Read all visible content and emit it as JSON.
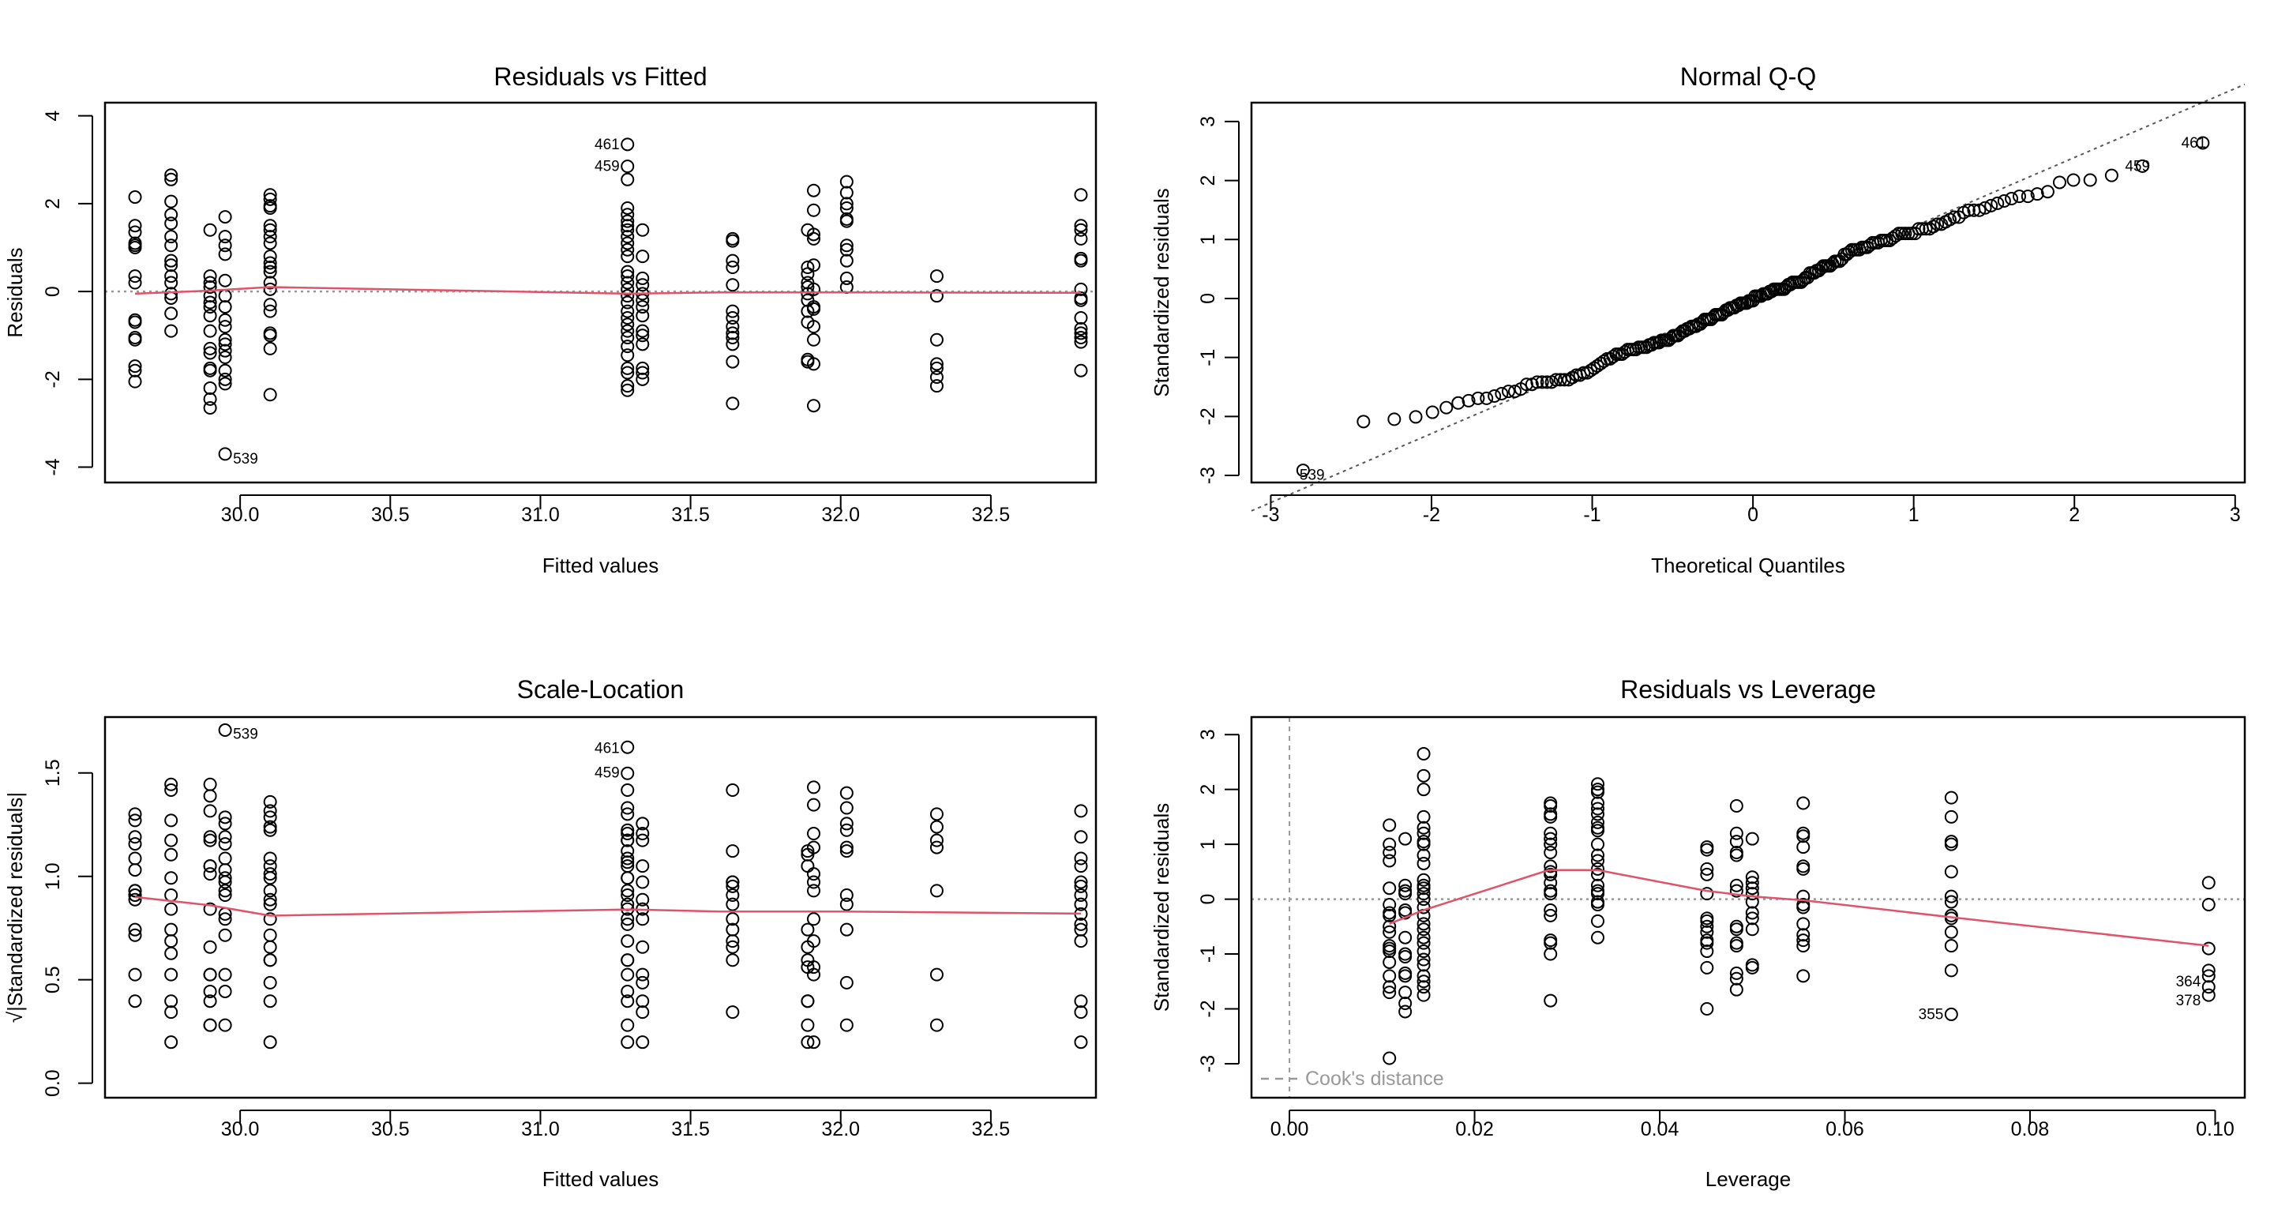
{
  "colors": {
    "points": "#000000",
    "smooth": "#DF536B",
    "reference": "#999999",
    "qqline": "#555555"
  },
  "chart_data": [
    {
      "type": "scatter",
      "title": "Residuals vs Fitted",
      "xlabel": "Fitted values",
      "ylabel": "Residuals",
      "xlim": [
        29.55,
        32.85
      ],
      "ylim": [
        -4.35,
        4.3
      ],
      "xticks": [
        30.0,
        30.5,
        31.0,
        31.5,
        32.0,
        32.5
      ],
      "xtick_labels": [
        "30.0",
        "30.5",
        "31.0",
        "31.5",
        "32.0",
        "32.5"
      ],
      "yticks": [
        -4,
        -2,
        0,
        2,
        4
      ],
      "ytick_labels": [
        "-4",
        "-2",
        "0",
        "2",
        "4"
      ],
      "hline": 0,
      "groups": [
        {
          "x": 29.65,
          "y": [
            2.15,
            1.5,
            1.35,
            1.1,
            1.05,
            1.0,
            0.35,
            0.2,
            -0.65,
            -0.7,
            -1.05,
            -1.1,
            -1.7,
            -1.8,
            -2.05
          ]
        },
        {
          "x": 29.77,
          "y": [
            2.65,
            2.55,
            2.05,
            1.75,
            1.55,
            1.25,
            1.05,
            0.7,
            0.6,
            0.35,
            0.2,
            -0.05,
            -0.15,
            -0.5,
            -0.9
          ]
        },
        {
          "x": 29.9,
          "y": [
            1.4,
            0.35,
            0.2,
            0.1,
            -0.1,
            -0.25,
            -0.35,
            -0.55,
            -0.9,
            -1.3,
            -1.4,
            -1.75,
            -1.8,
            -2.2,
            -2.45,
            -2.65
          ]
        },
        {
          "x": 29.95,
          "y": [
            1.7,
            1.25,
            1.05,
            0.85,
            0.25,
            -0.1,
            -0.35,
            -0.65,
            -0.8,
            -1.1,
            -1.2,
            -1.35,
            -1.5,
            -1.8,
            -2.0,
            -2.1,
            -3.7
          ]
        },
        {
          "x": 30.1,
          "y": [
            2.2,
            2.1,
            1.95,
            1.9,
            1.5,
            1.4,
            1.25,
            1.1,
            0.8,
            0.65,
            0.55,
            0.45,
            0.2,
            0.05,
            -0.3,
            -0.45,
            -0.95,
            -1.0,
            -1.3,
            -2.35
          ]
        },
        {
          "x": 31.29,
          "y": [
            3.35,
            2.85,
            2.55,
            1.9,
            1.75,
            1.6,
            1.5,
            1.4,
            1.25,
            1.1,
            0.95,
            0.8,
            0.45,
            0.35,
            0.2,
            0.05,
            -0.1,
            -0.25,
            -0.45,
            -0.6,
            -0.75,
            -0.9,
            -1.05,
            -1.25,
            -1.45,
            -1.75,
            -1.85,
            -2.15,
            -2.25
          ]
        },
        {
          "x": 31.34,
          "y": [
            1.4,
            0.8,
            0.3,
            0.15,
            -0.05,
            -0.2,
            -0.35,
            -0.55,
            -0.9,
            -1.0,
            -1.2,
            -1.75,
            -1.85,
            -2.0
          ]
        },
        {
          "x": 31.64,
          "y": [
            1.2,
            1.15,
            0.7,
            0.55,
            0.15,
            -0.45,
            -0.6,
            -0.8,
            -0.95,
            -1.05,
            -1.2,
            -1.6,
            -2.55
          ]
        },
        {
          "x": 31.89,
          "y": [
            1.4,
            0.55,
            0.4,
            0.2,
            0.1,
            -0.05,
            -0.2,
            -0.45,
            -0.7,
            -1.55,
            -1.6
          ]
        },
        {
          "x": 31.91,
          "y": [
            2.3,
            1.85,
            1.3,
            1.2,
            0.6,
            0.05,
            -0.35,
            -0.4,
            -0.8,
            -1.1,
            -1.65,
            -2.6
          ]
        },
        {
          "x": 32.02,
          "y": [
            2.5,
            2.25,
            2.0,
            1.9,
            1.65,
            1.6,
            1.05,
            0.95,
            0.7,
            0.3,
            0.1
          ]
        },
        {
          "x": 32.32,
          "y": [
            0.35,
            -0.1,
            -1.1,
            -1.65,
            -1.75,
            -1.95,
            -2.15
          ]
        },
        {
          "x": 32.8,
          "y": [
            2.2,
            1.5,
            1.4,
            1.2,
            0.75,
            0.7,
            0.05,
            -0.15,
            -0.2,
            -0.6,
            -0.85,
            -0.95,
            -1.05,
            -1.15,
            -1.8
          ]
        }
      ],
      "smooth": [
        [
          29.65,
          -0.05
        ],
        [
          29.9,
          0.02
        ],
        [
          30.1,
          0.1
        ],
        [
          31.3,
          -0.05
        ],
        [
          31.6,
          -0.02
        ],
        [
          32.0,
          -0.02
        ],
        [
          32.8,
          -0.03
        ]
      ],
      "point_labels": [
        {
          "text": "461",
          "x": 31.29,
          "y": 3.35,
          "side": "left"
        },
        {
          "text": "459",
          "x": 31.29,
          "y": 2.85,
          "side": "left"
        },
        {
          "text": "539",
          "x": 29.95,
          "y": -3.7,
          "side": "right"
        }
      ]
    },
    {
      "type": "scatter",
      "title": "Normal Q-Q",
      "xlabel": "Theoretical Quantiles",
      "ylabel": "Standardized residuals",
      "xlim": [
        -3.12,
        3.06
      ],
      "ylim": [
        -3.12,
        3.32
      ],
      "xticks": [
        -3,
        -2,
        -1,
        0,
        1,
        2,
        3
      ],
      "xtick_labels": [
        "-3",
        "-2",
        "-1",
        "0",
        "1",
        "2",
        "3"
      ],
      "yticks": [
        -3,
        -2,
        -1,
        0,
        1,
        2,
        3
      ],
      "ytick_labels": [
        "-3",
        "-2",
        "-1",
        "0",
        "1",
        "2",
        "3"
      ],
      "qqline": {
        "slope": 1.17,
        "intercept": 0.05
      },
      "point_labels": [
        {
          "text": "461",
          "x": 2.87,
          "y": 2.64,
          "side": "left"
        },
        {
          "text": "459",
          "x": 2.52,
          "y": 2.24,
          "side": "left"
        },
        {
          "text": "539",
          "x": -2.87,
          "y": -2.91,
          "side": "right"
        }
      ]
    },
    {
      "type": "scatter",
      "title": "Scale-Location",
      "xlabel": "Fitted values",
      "ylabel": "√|Standardized residuals|",
      "xlim": [
        29.55,
        32.85
      ],
      "ylim": [
        -0.07,
        1.77
      ],
      "xticks": [
        30.0,
        30.5,
        31.0,
        31.5,
        32.0,
        32.5
      ],
      "xtick_labels": [
        "30.0",
        "30.5",
        "31.0",
        "31.5",
        "32.0",
        "32.5"
      ],
      "yticks": [
        0,
        0.5,
        1.0,
        1.5
      ],
      "ytick_labels": [
        "0.0",
        "0.5",
        "1.0",
        "1.5"
      ],
      "smooth": [
        [
          29.65,
          0.9
        ],
        [
          29.9,
          0.86
        ],
        [
          30.1,
          0.81
        ],
        [
          31.3,
          0.84
        ],
        [
          31.6,
          0.83
        ],
        [
          32.0,
          0.83
        ],
        [
          32.8,
          0.82
        ]
      ],
      "point_labels": [
        {
          "text": "539",
          "x": 29.95,
          "y": 1.71,
          "side": "right"
        },
        {
          "text": "461",
          "x": 31.29,
          "y": 1.62,
          "side": "left"
        },
        {
          "text": "459",
          "x": 31.29,
          "y": 1.5,
          "side": "left"
        }
      ]
    },
    {
      "type": "scatter",
      "title": "Residuals vs Leverage",
      "xlabel": "Leverage",
      "ylabel": "Standardized residuals",
      "xlim": [
        -0.0041,
        0.1032
      ],
      "ylim": [
        -3.62,
        3.32
      ],
      "xticks": [
        0,
        0.02,
        0.04,
        0.06,
        0.08,
        0.1
      ],
      "xtick_labels": [
        "0.00",
        "0.02",
        "0.04",
        "0.06",
        "0.08",
        "0.10"
      ],
      "yticks": [
        -3,
        -2,
        -1,
        0,
        1,
        2,
        3
      ],
      "ytick_labels": [
        "-3",
        "-2",
        "-1",
        "0",
        "1",
        "2",
        "3"
      ],
      "hline": 0,
      "vline": 0,
      "legend": {
        "text": "Cook's distance",
        "position": "bottom-left"
      },
      "groups": [
        {
          "x": 0.0108,
          "y": [
            1.35,
            1.0,
            0.85,
            0.7,
            0.2,
            -0.1,
            -0.25,
            -0.3,
            -0.5,
            -0.6,
            -0.85,
            -0.9,
            -0.95,
            -1.15,
            -1.4,
            -1.6,
            -1.7,
            -2.9
          ]
        },
        {
          "x": 0.0125,
          "y": [
            1.1,
            0.25,
            0.15,
            0.1,
            -0.2,
            -0.25,
            -0.7,
            -1.0,
            -1.05,
            -1.35,
            -1.4,
            -1.7,
            -1.9,
            -2.05
          ]
        },
        {
          "x": 0.0145,
          "y": [
            2.65,
            2.25,
            2.0,
            1.5,
            1.3,
            1.2,
            1.05,
            1.0,
            0.8,
            0.65,
            0.35,
            0.25,
            0.2,
            0.1,
            0.0,
            -0.15,
            -0.3,
            -0.45,
            -0.55,
            -0.7,
            -0.8,
            -0.95,
            -1.1,
            -1.2,
            -1.4,
            -1.5,
            -1.6,
            -1.75
          ]
        },
        {
          "x": 0.0282,
          "y": [
            1.75,
            1.7,
            1.55,
            1.5,
            1.2,
            1.1,
            1.0,
            0.85,
            0.6,
            0.5,
            0.45,
            0.3,
            0.15,
            0.1,
            -0.2,
            -0.3,
            -0.75,
            -0.8,
            -1.0,
            -1.85
          ]
        },
        {
          "x": 0.0333,
          "y": [
            2.1,
            2.0,
            1.95,
            1.75,
            1.65,
            1.55,
            1.4,
            1.3,
            1.25,
            1.0,
            0.8,
            0.7,
            0.55,
            0.45,
            0.25,
            0.15,
            0.1,
            -0.05,
            -0.1,
            -0.4,
            -0.7
          ]
        },
        {
          "x": 0.0451,
          "y": [
            0.95,
            0.9,
            0.55,
            0.45,
            0.1,
            -0.35,
            -0.4,
            -0.5,
            -0.6,
            -0.75,
            -0.8,
            -0.95,
            -1.25,
            -2.0
          ]
        },
        {
          "x": 0.0483,
          "y": [
            1.7,
            1.2,
            1.05,
            0.85,
            0.8,
            0.25,
            0.15,
            -0.5,
            -0.55,
            -0.8,
            -0.85,
            -1.35,
            -1.45,
            -1.65
          ]
        },
        {
          "x": 0.05,
          "y": [
            1.1,
            0.4,
            0.3,
            0.2,
            0.1,
            -0.05,
            -0.25,
            -0.35,
            -0.55,
            -1.2,
            -1.25
          ]
        },
        {
          "x": 0.0555,
          "y": [
            1.75,
            1.2,
            1.15,
            0.95,
            0.6,
            0.55,
            0.05,
            -0.1,
            -0.15,
            -0.45,
            -0.65,
            -0.75,
            -0.85,
            -1.4
          ]
        },
        {
          "x": 0.0715,
          "y": [
            1.85,
            1.5,
            1.05,
            1.0,
            0.5,
            0.05,
            -0.05,
            -0.3,
            -0.35,
            -0.6,
            -0.85,
            -1.3,
            -2.1
          ]
        },
        {
          "x": 0.0993,
          "y": [
            0.3,
            -0.1,
            -0.9,
            -1.3,
            -1.4,
            -1.6,
            -1.75
          ]
        }
      ],
      "smooth": [
        [
          0.0108,
          -0.45
        ],
        [
          0.0145,
          -0.2
        ],
        [
          0.028,
          0.53
        ],
        [
          0.0333,
          0.53
        ],
        [
          0.0451,
          0.15
        ],
        [
          0.05,
          0.05
        ],
        [
          0.0555,
          -0.02
        ],
        [
          0.0715,
          -0.33
        ],
        [
          0.0993,
          -0.85
        ]
      ],
      "point_labels": [
        {
          "text": "355",
          "x": 0.0715,
          "y": -2.1,
          "side": "left"
        },
        {
          "text": "364",
          "x": 0.0993,
          "y": -1.6,
          "side": "left"
        },
        {
          "text": "378",
          "x": 0.0993,
          "y": -1.75,
          "side": "left"
        }
      ]
    }
  ]
}
